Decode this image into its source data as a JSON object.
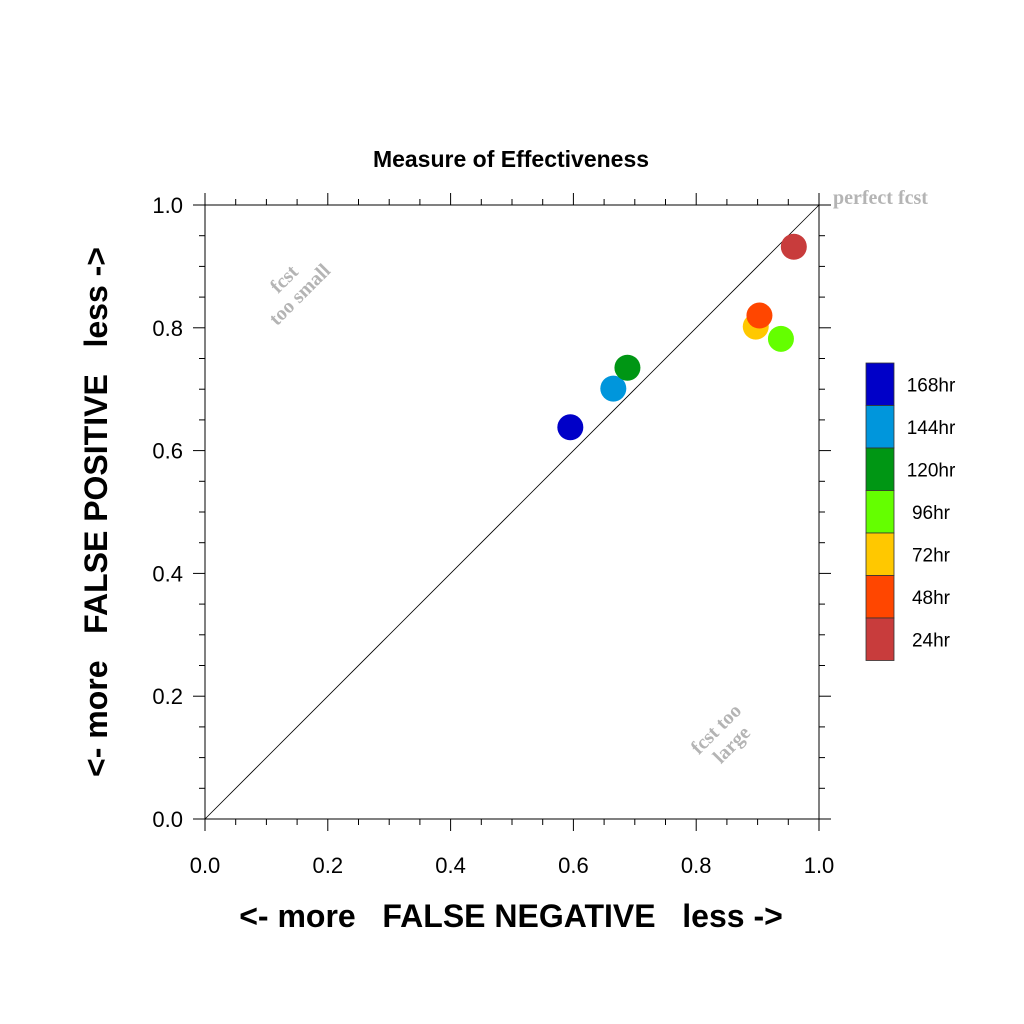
{
  "chart_data": {
    "type": "scatter",
    "title": "Measure of Effectiveness",
    "xlabel": "<- more   FALSE NEGATIVE   less ->",
    "ylabel": "<- more   FALSE POSITIVE   less ->",
    "xlim": [
      0.0,
      1.0
    ],
    "ylim": [
      0.0,
      1.0
    ],
    "xticks": [
      "0.0",
      "0.2",
      "0.4",
      "0.6",
      "0.8",
      "1.0"
    ],
    "yticks": [
      "0.0",
      "0.2",
      "0.4",
      "0.6",
      "0.8",
      "1.0"
    ],
    "grid": false,
    "legend_position": "right",
    "reference_line": "diagonal",
    "annotations": {
      "perfect": "perfect fcst",
      "too_small_line1": "fcst",
      "too_small_line2": "too small",
      "too_large_line1": "fcst too",
      "too_large_line2": "large"
    },
    "series": [
      {
        "name": "168hr",
        "color": "#0000c8",
        "x": 0.595,
        "y": 0.638
      },
      {
        "name": "144hr",
        "color": "#0096dc",
        "x": 0.665,
        "y": 0.701
      },
      {
        "name": "120hr",
        "color": "#009614",
        "x": 0.688,
        "y": 0.735
      },
      {
        "name": "96hr",
        "color": "#64ff00",
        "x": 0.938,
        "y": 0.782
      },
      {
        "name": "72hr",
        "color": "#ffc800",
        "x": 0.897,
        "y": 0.802
      },
      {
        "name": "48hr",
        "color": "#ff4600",
        "x": 0.903,
        "y": 0.82
      },
      {
        "name": "24hr",
        "color": "#c83c3c",
        "x": 0.959,
        "y": 0.932
      }
    ]
  }
}
